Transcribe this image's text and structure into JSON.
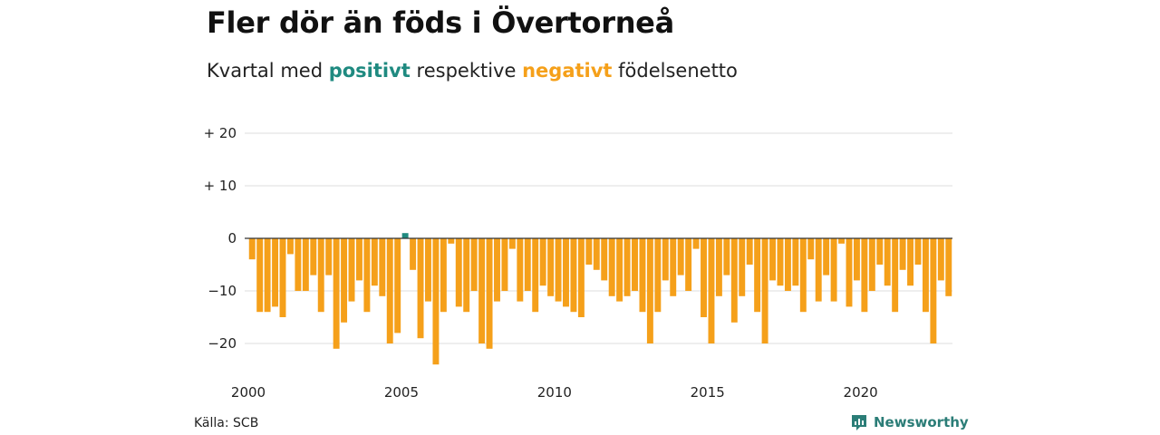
{
  "title": "Fler dör än föds i Övertorneå",
  "subtitle": {
    "before": "Kvartal med",
    "positive_word": "positivt",
    "middle": "respektive",
    "negative_word": "negativt",
    "after": "födelsenetto"
  },
  "colors": {
    "positive": "#1f8a80",
    "negative": "#f5a01a",
    "gridline": "#dddddd",
    "zero_line": "#333333",
    "brand": "#2b7d77"
  },
  "source": "Källa: SCB",
  "brand": {
    "name": "Newsworthy",
    "icon": "newsworthy-logo-icon"
  },
  "chart_data": {
    "type": "bar",
    "title": "Fler dör än föds i Övertorneå",
    "xlabel": "",
    "ylabel": "",
    "ylim": [
      -25,
      22
    ],
    "yticks": [
      {
        "value": 20,
        "label": "+ 20"
      },
      {
        "value": 10,
        "label": "+ 10"
      },
      {
        "value": 0,
        "label": "0"
      },
      {
        "value": -10,
        "label": "−10"
      },
      {
        "value": -20,
        "label": "−20"
      }
    ],
    "xticks": [
      {
        "year": 2000,
        "label": "2000"
      },
      {
        "year": 2005,
        "label": "2005"
      },
      {
        "year": 2010,
        "label": "2010"
      },
      {
        "year": 2015,
        "label": "2015"
      },
      {
        "year": 2020,
        "label": "2020"
      }
    ],
    "grid": true,
    "start_year": 2000,
    "start_quarter": 1,
    "values": [
      -4,
      -14,
      -14,
      -13,
      -15,
      -3,
      -10,
      -10,
      -7,
      -14,
      -7,
      -21,
      -16,
      -12,
      -8,
      -14,
      -9,
      -11,
      -20,
      -18,
      1,
      -6,
      -19,
      -12,
      -24,
      -14,
      -1,
      -13,
      -14,
      -10,
      -20,
      -21,
      -12,
      -10,
      -2,
      -12,
      -10,
      -14,
      -9,
      -11,
      -12,
      -13,
      -14,
      -15,
      -5,
      -6,
      -8,
      -11,
      -12,
      -11,
      -10,
      -14,
      -20,
      -14,
      -8,
      -11,
      -7,
      -10,
      -2,
      -15,
      -20,
      -11,
      -7,
      -16,
      -11,
      -5,
      -14,
      -20,
      -8,
      -9,
      -10,
      -9,
      -14,
      -4,
      -12,
      -7,
      -12,
      -1,
      -13,
      -8,
      -14,
      -10,
      -5,
      -9,
      -14,
      -6,
      -9,
      -5,
      -14,
      -20,
      -8,
      -11
    ]
  }
}
